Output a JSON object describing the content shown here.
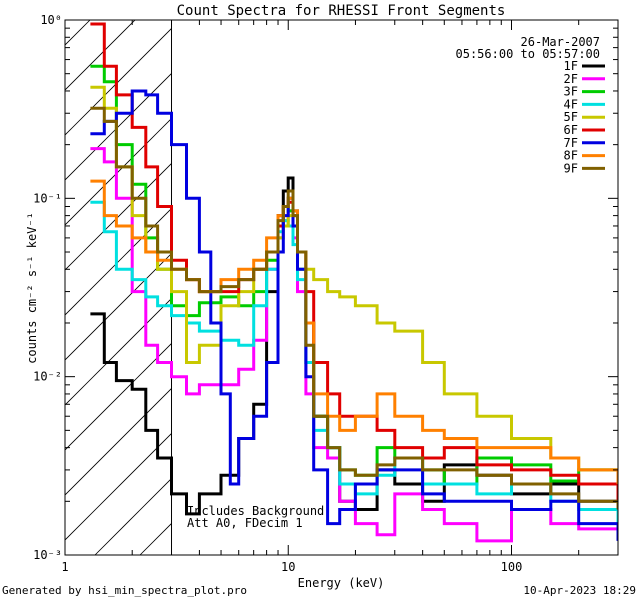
{
  "chart_data": {
    "type": "line",
    "title": "Count Spectra for RHESSI Front Segments",
    "xlabel": "Energy (keV)",
    "ylabel": "counts cm⁻² s⁻¹ keV⁻¹",
    "xscale": "log",
    "yscale": "log",
    "xlim": [
      1,
      300
    ],
    "ylim": [
      0.001,
      1
    ],
    "x_ticks": [
      {
        "value": 1,
        "label": "1"
      },
      {
        "value": 10,
        "label": "10"
      },
      {
        "value": 100,
        "label": "100"
      }
    ],
    "y_ticks": [
      {
        "value": 1,
        "label": "10⁰"
      },
      {
        "value": 0.1,
        "label": "10⁻¹"
      },
      {
        "value": 0.01,
        "label": "10⁻²"
      },
      {
        "value": 0.001,
        "label": "10⁻³"
      }
    ],
    "date": "26-Mar-2007",
    "time_range": "05:56:00 to 05:57:00",
    "annotations": [
      "Includes Background",
      "Att A0, FDecim 1"
    ],
    "hatched_region_kev": [
      1,
      3
    ],
    "series": [
      {
        "name": "1F",
        "color": "#000000",
        "x": [
          1.3,
          1.5,
          1.7,
          2.0,
          2.3,
          2.6,
          3.0,
          3.5,
          4.0,
          5.0,
          6.0,
          7.0,
          8.0,
          9.0,
          9.5,
          10.0,
          10.5,
          11.0,
          12.0,
          13.0,
          15.0,
          17.0,
          20.0,
          25.0,
          30.0,
          40.0,
          50.0,
          70.0,
          100.0,
          150.0,
          200.0,
          300.0
        ],
        "y": [
          0.0225,
          0.012,
          0.0095,
          0.0085,
          0.005,
          0.0035,
          0.0022,
          0.0017,
          0.0022,
          0.0028,
          0.0045,
          0.007,
          0.03,
          0.08,
          0.11,
          0.13,
          0.085,
          0.05,
          0.02,
          0.006,
          0.004,
          0.002,
          0.0018,
          0.003,
          0.0025,
          0.002,
          0.0032,
          0.0028,
          0.0022,
          0.0025,
          0.002,
          0.0025
        ]
      },
      {
        "name": "2F",
        "color": "#ff00ff",
        "x": [
          1.3,
          1.5,
          1.7,
          2.0,
          2.3,
          2.6,
          3.0,
          3.5,
          4.0,
          5.0,
          6.0,
          7.0,
          8.0,
          9.0,
          9.5,
          10.0,
          10.5,
          11.0,
          12.0,
          13.0,
          15.0,
          17.0,
          20.0,
          25.0,
          30.0,
          40.0,
          50.0,
          70.0,
          100.0,
          150.0,
          200.0,
          300.0
        ],
        "y": [
          0.19,
          0.16,
          0.1,
          0.03,
          0.015,
          0.012,
          0.01,
          0.008,
          0.009,
          0.009,
          0.011,
          0.016,
          0.04,
          0.06,
          0.075,
          0.085,
          0.06,
          0.03,
          0.008,
          0.004,
          0.0035,
          0.002,
          0.0015,
          0.0013,
          0.0022,
          0.0018,
          0.0015,
          0.0012,
          0.0018,
          0.0015,
          0.0014,
          0.0013
        ]
      },
      {
        "name": "3F",
        "color": "#00cc00",
        "x": [
          1.3,
          1.5,
          1.7,
          2.0,
          2.3,
          2.6,
          3.0,
          3.5,
          4.0,
          5.0,
          6.0,
          7.0,
          8.0,
          9.0,
          9.5,
          10.0,
          10.5,
          11.0,
          12.0,
          13.0,
          15.0,
          17.0,
          20.0,
          25.0,
          30.0,
          40.0,
          50.0,
          70.0,
          100.0,
          150.0,
          200.0,
          300.0
        ],
        "y": [
          0.55,
          0.45,
          0.2,
          0.12,
          0.06,
          0.04,
          0.025,
          0.022,
          0.026,
          0.028,
          0.025,
          0.03,
          0.045,
          0.07,
          0.09,
          0.085,
          0.07,
          0.04,
          0.012,
          0.006,
          0.004,
          0.003,
          0.0028,
          0.004,
          0.0035,
          0.003,
          0.0025,
          0.0035,
          0.0032,
          0.0026,
          0.003,
          0.0018
        ]
      },
      {
        "name": "4F",
        "color": "#00e0e0",
        "x": [
          1.3,
          1.5,
          1.7,
          2.0,
          2.3,
          2.6,
          3.0,
          3.5,
          4.0,
          5.0,
          6.0,
          7.0,
          8.0,
          9.0,
          9.5,
          10.0,
          10.5,
          11.0,
          12.0,
          13.0,
          15.0,
          17.0,
          20.0,
          25.0,
          30.0,
          40.0,
          50.0,
          70.0,
          100.0,
          150.0,
          200.0,
          300.0
        ],
        "y": [
          0.095,
          0.065,
          0.04,
          0.035,
          0.028,
          0.025,
          0.022,
          0.02,
          0.018,
          0.016,
          0.015,
          0.025,
          0.04,
          0.065,
          0.075,
          0.07,
          0.055,
          0.035,
          0.012,
          0.005,
          0.004,
          0.0025,
          0.0022,
          0.0028,
          0.0035,
          0.0025,
          0.0025,
          0.0022,
          0.0025,
          0.002,
          0.0018,
          0.0015
        ]
      },
      {
        "name": "5F",
        "color": "#c8c800",
        "x": [
          1.3,
          1.5,
          1.7,
          2.0,
          2.3,
          2.6,
          3.0,
          3.5,
          4.0,
          5.0,
          6.0,
          7.0,
          8.0,
          9.0,
          9.5,
          10.0,
          10.5,
          11.0,
          12.0,
          13.0,
          15.0,
          17.0,
          20.0,
          25.0,
          30.0,
          40.0,
          50.0,
          70.0,
          100.0,
          150.0,
          200.0,
          300.0
        ],
        "y": [
          0.42,
          0.32,
          0.15,
          0.08,
          0.05,
          0.04,
          0.03,
          0.012,
          0.015,
          0.025,
          0.03,
          0.04,
          0.05,
          0.06,
          0.07,
          0.08,
          0.07,
          0.05,
          0.04,
          0.035,
          0.03,
          0.028,
          0.025,
          0.02,
          0.018,
          0.012,
          0.008,
          0.006,
          0.0045,
          0.0035,
          0.003,
          0.0025
        ]
      },
      {
        "name": "6F",
        "color": "#e00000",
        "x": [
          1.3,
          1.5,
          1.7,
          2.0,
          2.3,
          2.6,
          3.0,
          3.5,
          4.0,
          5.0,
          6.0,
          7.0,
          8.0,
          9.0,
          9.5,
          10.0,
          10.5,
          11.0,
          12.0,
          13.0,
          15.0,
          17.0,
          20.0,
          25.0,
          30.0,
          40.0,
          50.0,
          70.0,
          100.0,
          150.0,
          200.0,
          300.0
        ],
        "y": [
          0.95,
          0.55,
          0.38,
          0.25,
          0.15,
          0.09,
          0.045,
          0.035,
          0.03,
          0.03,
          0.035,
          0.04,
          0.05,
          0.07,
          0.09,
          0.095,
          0.08,
          0.05,
          0.03,
          0.012,
          0.008,
          0.006,
          0.006,
          0.005,
          0.004,
          0.0035,
          0.004,
          0.0032,
          0.003,
          0.0028,
          0.0025,
          0.0018
        ]
      },
      {
        "name": "7F",
        "color": "#0000e0",
        "x": [
          1.3,
          1.5,
          1.7,
          2.0,
          2.3,
          2.6,
          3.0,
          3.5,
          4.0,
          4.5,
          5.0,
          5.5,
          6.0,
          7.0,
          8.0,
          9.0,
          9.5,
          10.0,
          10.5,
          11.0,
          12.0,
          13.0,
          15.0,
          17.0,
          20.0,
          25.0,
          30.0,
          40.0,
          50.0,
          70.0,
          100.0,
          150.0,
          200.0,
          300.0
        ],
        "y": [
          0.23,
          0.27,
          0.3,
          0.4,
          0.38,
          0.3,
          0.2,
          0.1,
          0.05,
          0.02,
          0.008,
          0.0025,
          0.0045,
          0.006,
          0.012,
          0.05,
          0.08,
          0.1,
          0.07,
          0.04,
          0.01,
          0.003,
          0.0015,
          0.0018,
          0.0025,
          0.003,
          0.003,
          0.0022,
          0.002,
          0.002,
          0.0018,
          0.002,
          0.0015,
          0.0012
        ]
      },
      {
        "name": "8F",
        "color": "#ff8000",
        "x": [
          1.3,
          1.5,
          1.7,
          2.0,
          2.3,
          2.6,
          3.0,
          3.5,
          4.0,
          5.0,
          6.0,
          7.0,
          8.0,
          9.0,
          9.5,
          10.0,
          10.5,
          11.0,
          12.0,
          13.0,
          15.0,
          17.0,
          20.0,
          25.0,
          30.0,
          40.0,
          50.0,
          70.0,
          100.0,
          150.0,
          200.0,
          300.0
        ],
        "y": [
          0.125,
          0.08,
          0.07,
          0.06,
          0.05,
          0.045,
          0.04,
          0.035,
          0.03,
          0.035,
          0.04,
          0.045,
          0.06,
          0.08,
          0.09,
          0.1,
          0.085,
          0.05,
          0.02,
          0.008,
          0.006,
          0.005,
          0.006,
          0.008,
          0.006,
          0.005,
          0.0045,
          0.004,
          0.004,
          0.0035,
          0.003,
          0.0025
        ]
      },
      {
        "name": "9F",
        "color": "#806000",
        "x": [
          1.3,
          1.5,
          1.7,
          2.0,
          2.3,
          2.6,
          3.0,
          3.5,
          4.0,
          5.0,
          6.0,
          7.0,
          8.0,
          9.0,
          9.5,
          10.0,
          10.5,
          11.0,
          12.0,
          13.0,
          15.0,
          17.0,
          20.0,
          25.0,
          30.0,
          40.0,
          50.0,
          70.0,
          100.0,
          150.0,
          200.0,
          300.0
        ],
        "y": [
          0.32,
          0.27,
          0.15,
          0.1,
          0.07,
          0.05,
          0.04,
          0.035,
          0.03,
          0.032,
          0.035,
          0.04,
          0.05,
          0.075,
          0.09,
          0.11,
          0.08,
          0.05,
          0.015,
          0.006,
          0.004,
          0.003,
          0.0028,
          0.0032,
          0.0035,
          0.003,
          0.003,
          0.0028,
          0.0025,
          0.0022,
          0.002,
          0.0018
        ]
      }
    ]
  },
  "footer": {
    "generated_by": "Generated by hsi_min_spectra_plot.pro",
    "timestamp": "10-Apr-2023 18:29"
  }
}
